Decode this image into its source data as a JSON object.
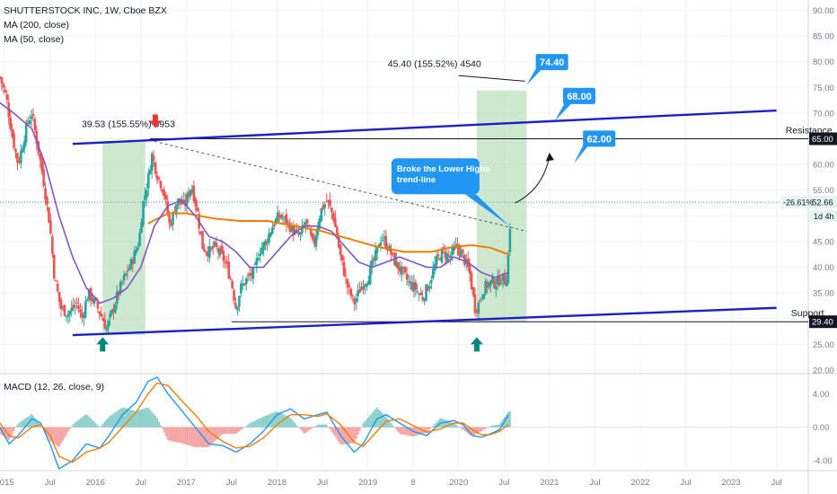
{
  "header": {
    "symbol_line": "SHUTTERSTOCK INC, 1W, Cboe BZX",
    "ma200_label": "MA (200, close)",
    "ma50_label": "MA (50, close)",
    "macd_label": "MACD (12, 26, close, 9)"
  },
  "colors": {
    "bull_candle": "#26a69a",
    "bear_candle": "#ef5350",
    "ma200": "#f57c00",
    "ma50": "#7e57c2",
    "channel": "#1a1fc7",
    "callout": "#2196f3",
    "arrow_down": "#e53935",
    "arrow_up": "#00897b",
    "rally_box": "#a5d6a7",
    "macd_line": "#2196f3",
    "signal_line": "#f57c00"
  },
  "icons": {
    "arrow_down": "red-down-arrow-icon",
    "arrow_up": "teal-up-arrow-icon"
  },
  "chart_data": [
    {
      "type": "candlestick",
      "title": "SHUTTERSTOCK INC, 1W, Cboe BZX",
      "ylim": [
        20,
        92
      ],
      "y_ticks": [
        "90.00",
        "85.00",
        "80.00",
        "75.00",
        "70.00",
        "65.00",
        "60.00",
        "55.00",
        "50.00",
        "45.00",
        "40.00",
        "35.00",
        "30.00",
        "25.00",
        "20.00"
      ],
      "x_ticks": [
        "2015",
        "Jul",
        "2016",
        "Jul",
        "2017",
        "Jul",
        "2018",
        "Jul",
        "2019",
        "8",
        "2020",
        "Jul",
        "2021",
        "Jul",
        "2022",
        "Jul",
        "2023",
        "Jul"
      ],
      "x_tick_dates": [
        2015.0,
        2015.5,
        2016.0,
        2016.5,
        2017.0,
        2017.5,
        2018.0,
        2018.5,
        2019.0,
        2019.5,
        2020.0,
        2020.5,
        2021.0,
        2021.5,
        2022.0,
        2022.5,
        2023.0,
        2023.5
      ],
      "x_range": [
        2014.95,
        2023.85
      ],
      "price_path": [
        [
          2014.95,
          77
        ],
        [
          2015.02,
          73
        ],
        [
          2015.08,
          66
        ],
        [
          2015.15,
          60
        ],
        [
          2015.25,
          68
        ],
        [
          2015.3,
          70
        ],
        [
          2015.35,
          65
        ],
        [
          2015.42,
          58
        ],
        [
          2015.5,
          48
        ],
        [
          2015.55,
          38
        ],
        [
          2015.62,
          32
        ],
        [
          2015.7,
          31
        ],
        [
          2015.8,
          33
        ],
        [
          2015.85,
          30
        ],
        [
          2015.92,
          35
        ],
        [
          2016.0,
          33
        ],
        [
          2016.08,
          30
        ],
        [
          2016.12,
          28
        ],
        [
          2016.18,
          31
        ],
        [
          2016.25,
          35
        ],
        [
          2016.32,
          38
        ],
        [
          2016.4,
          41
        ],
        [
          2016.48,
          45
        ],
        [
          2016.52,
          52
        ],
        [
          2016.58,
          57
        ],
        [
          2016.62,
          62
        ],
        [
          2016.68,
          58
        ],
        [
          2016.75,
          55
        ],
        [
          2016.82,
          48
        ],
        [
          2016.9,
          53
        ],
        [
          2016.98,
          52
        ],
        [
          2017.06,
          56
        ],
        [
          2017.12,
          51
        ],
        [
          2017.18,
          44
        ],
        [
          2017.25,
          43
        ],
        [
          2017.32,
          44
        ],
        [
          2017.4,
          42
        ],
        [
          2017.45,
          40
        ],
        [
          2017.5,
          37
        ],
        [
          2017.55,
          32
        ],
        [
          2017.6,
          36
        ],
        [
          2017.68,
          38
        ],
        [
          2017.75,
          39
        ],
        [
          2017.8,
          43
        ],
        [
          2017.88,
          45
        ],
        [
          2017.95,
          48
        ],
        [
          2018.02,
          50
        ],
        [
          2018.1,
          49
        ],
        [
          2018.18,
          47
        ],
        [
          2018.25,
          46
        ],
        [
          2018.32,
          49
        ],
        [
          2018.4,
          44
        ],
        [
          2018.48,
          51
        ],
        [
          2018.55,
          53
        ],
        [
          2018.62,
          50
        ],
        [
          2018.7,
          42
        ],
        [
          2018.78,
          36
        ],
        [
          2018.85,
          33
        ],
        [
          2018.92,
          36
        ],
        [
          2019.0,
          38
        ],
        [
          2019.08,
          42
        ],
        [
          2019.15,
          46
        ],
        [
          2019.22,
          44
        ],
        [
          2019.3,
          41
        ],
        [
          2019.38,
          39
        ],
        [
          2019.45,
          37
        ],
        [
          2019.52,
          36
        ],
        [
          2019.6,
          34
        ],
        [
          2019.68,
          37
        ],
        [
          2019.75,
          41
        ],
        [
          2019.82,
          43
        ],
        [
          2019.9,
          42
        ],
        [
          2019.98,
          44
        ],
        [
          2020.05,
          42
        ],
        [
          2020.12,
          39
        ],
        [
          2020.18,
          32
        ],
        [
          2020.22,
          33
        ],
        [
          2020.28,
          36
        ],
        [
          2020.35,
          37
        ],
        [
          2020.42,
          37
        ],
        [
          2020.48,
          38
        ],
        [
          2020.52,
          37
        ],
        [
          2020.55,
          43
        ],
        [
          2020.58,
          53
        ]
      ],
      "ma200": [
        [
          2016.58,
          48.5
        ],
        [
          2016.8,
          50.5
        ],
        [
          2017.0,
          50.5
        ],
        [
          2017.3,
          49.5
        ],
        [
          2017.6,
          49
        ],
        [
          2017.9,
          49
        ],
        [
          2018.2,
          48
        ],
        [
          2018.5,
          47
        ],
        [
          2018.8,
          45.5
        ],
        [
          2019.1,
          44
        ],
        [
          2019.4,
          43
        ],
        [
          2019.7,
          43
        ],
        [
          2019.95,
          44
        ],
        [
          2020.15,
          44.3
        ],
        [
          2020.35,
          43.8
        ],
        [
          2020.55,
          42.5
        ]
      ],
      "ma50": [
        [
          2014.95,
          72
        ],
        [
          2015.1,
          70
        ],
        [
          2015.3,
          67
        ],
        [
          2015.45,
          60
        ],
        [
          2015.6,
          50
        ],
        [
          2015.75,
          42
        ],
        [
          2015.9,
          36
        ],
        [
          2016.05,
          33
        ],
        [
          2016.2,
          34
        ],
        [
          2016.35,
          36
        ],
        [
          2016.5,
          40
        ],
        [
          2016.65,
          48
        ],
        [
          2016.8,
          52
        ],
        [
          2016.95,
          53
        ],
        [
          2017.1,
          50
        ],
        [
          2017.25,
          46
        ],
        [
          2017.4,
          45
        ],
        [
          2017.55,
          43
        ],
        [
          2017.7,
          40
        ],
        [
          2017.85,
          40
        ],
        [
          2018.0,
          43
        ],
        [
          2018.15,
          46
        ],
        [
          2018.3,
          48
        ],
        [
          2018.45,
          48
        ],
        [
          2018.6,
          47
        ],
        [
          2018.75,
          44
        ],
        [
          2018.9,
          41
        ],
        [
          2019.05,
          40
        ],
        [
          2019.2,
          41
        ],
        [
          2019.35,
          42
        ],
        [
          2019.5,
          41
        ],
        [
          2019.65,
          40
        ],
        [
          2019.8,
          40
        ],
        [
          2019.95,
          42
        ],
        [
          2020.1,
          41
        ],
        [
          2020.25,
          39
        ],
        [
          2020.4,
          38
        ],
        [
          2020.55,
          39
        ]
      ],
      "channel_top": [
        [
          2015.75,
          64
        ],
        [
          2023.5,
          70.5
        ]
      ],
      "channel_bottom": [
        [
          2015.75,
          26.8
        ],
        [
          2023.5,
          32.1
        ]
      ],
      "lower_highs_trendline": [
        [
          2016.65,
          64.5
        ],
        [
          2020.75,
          47
        ]
      ],
      "resistance_level": 65.0,
      "support_level": 29.4,
      "current_price": 52.66,
      "annotations": {
        "move1": "39.53 (155.55%) 3953",
        "move2": "45.40 (155.52%) 4540",
        "target1": "74.40",
        "target2": "68.00",
        "target3": "62.00",
        "trendline_note": "Broke the Lower Highs trend-line",
        "resistance": "Resistance",
        "support": "Support",
        "resistance_badge": "65.00",
        "support_badge": "29.40",
        "price_badge": "52.66",
        "change_badge": "-26.61%",
        "countdown_badge": "1d 4h"
      }
    },
    {
      "type": "macd",
      "title": "MACD (12, 26, close, 9)",
      "ylim": [
        -5,
        6
      ],
      "y_ticks": [
        "4.00",
        "0.00",
        "-4.00"
      ],
      "macd": [
        [
          2014.95,
          0
        ],
        [
          2015.05,
          -2
        ],
        [
          2015.15,
          -1
        ],
        [
          2015.3,
          1
        ],
        [
          2015.4,
          0.5
        ],
        [
          2015.5,
          -2
        ],
        [
          2015.6,
          -5
        ],
        [
          2015.75,
          -4
        ],
        [
          2015.9,
          -2
        ],
        [
          2016.05,
          -2.5
        ],
        [
          2016.15,
          -1
        ],
        [
          2016.3,
          1.5
        ],
        [
          2016.45,
          3
        ],
        [
          2016.58,
          5.5
        ],
        [
          2016.68,
          6
        ],
        [
          2016.8,
          4
        ],
        [
          2016.95,
          2
        ],
        [
          2017.1,
          0
        ],
        [
          2017.25,
          -2
        ],
        [
          2017.4,
          -2.2
        ],
        [
          2017.55,
          -3
        ],
        [
          2017.7,
          -2
        ],
        [
          2017.85,
          -0.5
        ],
        [
          2018.0,
          1.5
        ],
        [
          2018.15,
          2.2
        ],
        [
          2018.3,
          1
        ],
        [
          2018.45,
          1.5
        ],
        [
          2018.55,
          1.8
        ],
        [
          2018.7,
          -1
        ],
        [
          2018.85,
          -3
        ],
        [
          2018.95,
          -2
        ],
        [
          2019.1,
          1
        ],
        [
          2019.2,
          1.5
        ],
        [
          2019.35,
          0.5
        ],
        [
          2019.5,
          -0.5
        ],
        [
          2019.65,
          -1
        ],
        [
          2019.8,
          0.5
        ],
        [
          2019.95,
          0.8
        ],
        [
          2020.05,
          0.3
        ],
        [
          2020.15,
          -1
        ],
        [
          2020.25,
          -1.2
        ],
        [
          2020.35,
          -0.8
        ],
        [
          2020.45,
          -0.3
        ],
        [
          2020.55,
          1.5
        ]
      ],
      "signal": [
        [
          2014.95,
          0.5
        ],
        [
          2015.05,
          -1
        ],
        [
          2015.15,
          -1.3
        ],
        [
          2015.3,
          0
        ],
        [
          2015.4,
          0.3
        ],
        [
          2015.5,
          -1
        ],
        [
          2015.6,
          -3.5
        ],
        [
          2015.75,
          -4.2
        ],
        [
          2015.9,
          -3
        ],
        [
          2016.05,
          -2.5
        ],
        [
          2016.15,
          -1.8
        ],
        [
          2016.3,
          0
        ],
        [
          2016.45,
          1.8
        ],
        [
          2016.58,
          4
        ],
        [
          2016.68,
          5.3
        ],
        [
          2016.8,
          5
        ],
        [
          2016.95,
          3.2
        ],
        [
          2017.1,
          1.5
        ],
        [
          2017.25,
          -0.5
        ],
        [
          2017.4,
          -1.7
        ],
        [
          2017.55,
          -2.5
        ],
        [
          2017.7,
          -2.3
        ],
        [
          2017.85,
          -1.3
        ],
        [
          2018.0,
          0.3
        ],
        [
          2018.15,
          1.5
        ],
        [
          2018.3,
          1.5
        ],
        [
          2018.45,
          1.3
        ],
        [
          2018.55,
          1.6
        ],
        [
          2018.7,
          0.3
        ],
        [
          2018.85,
          -1.8
        ],
        [
          2018.95,
          -2.3
        ],
        [
          2019.1,
          -0.5
        ],
        [
          2019.2,
          0.7
        ],
        [
          2019.35,
          1
        ],
        [
          2019.5,
          0.2
        ],
        [
          2019.65,
          -0.6
        ],
        [
          2019.8,
          -0.2
        ],
        [
          2019.95,
          0.5
        ],
        [
          2020.05,
          0.5
        ],
        [
          2020.15,
          -0.3
        ],
        [
          2020.25,
          -0.9
        ],
        [
          2020.35,
          -0.9
        ],
        [
          2020.45,
          -0.5
        ],
        [
          2020.55,
          0.3
        ]
      ]
    }
  ]
}
